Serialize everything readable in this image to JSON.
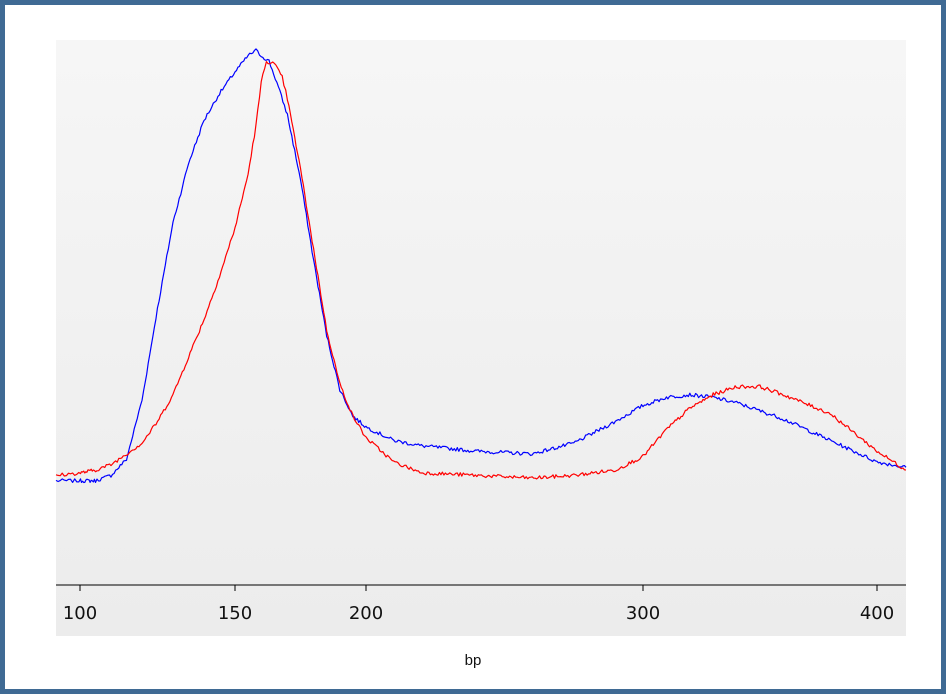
{
  "chart_data": {
    "type": "line",
    "title": "",
    "xlabel": "bp",
    "ylabel": "",
    "x_scale": "nonlinear (fragment sizes compressed toward larger bp)",
    "xlim": [
      96,
      416
    ],
    "ylim": [
      0,
      100
    ],
    "x_ticks": [
      100,
      150,
      200,
      300,
      400
    ],
    "grid": false,
    "legend": "none",
    "background": "#f2f2f2",
    "series": [
      {
        "color": "#0000ff",
        "x": [
          96,
          105,
          110,
          115,
          120,
          125,
          130,
          135,
          140,
          145,
          150,
          155,
          158,
          160,
          163,
          166,
          170,
          175,
          180,
          185,
          190,
          195,
          200,
          210,
          220,
          240,
          260,
          275,
          290,
          300,
          310,
          320,
          330,
          340,
          360,
          380,
          400,
          416
        ],
        "y": [
          19,
          19,
          20,
          23,
          34,
          51,
          67,
          78,
          86,
          91,
          95,
          98,
          99,
          98,
          97,
          93,
          87,
          75,
          60,
          46,
          36,
          31,
          29,
          26.5,
          25.5,
          24.5,
          24,
          26,
          30,
          33,
          34.5,
          35,
          34.5,
          33.5,
          30.5,
          26.5,
          22.5,
          21.5
        ]
      },
      {
        "color": "#ff0000",
        "x": [
          96,
          105,
          110,
          115,
          120,
          125,
          130,
          135,
          140,
          145,
          150,
          155,
          158,
          160,
          162,
          165,
          168,
          170,
          175,
          180,
          185,
          190,
          195,
          200,
          210,
          220,
          240,
          260,
          275,
          290,
          300,
          310,
          320,
          330,
          340,
          350,
          360,
          380,
          400,
          416
        ],
        "y": [
          20,
          21,
          22,
          24,
          26,
          30,
          35,
          42,
          49,
          57,
          66,
          76,
          85,
          93,
          97,
          96.5,
          94,
          90,
          77,
          62,
          47,
          37,
          31,
          27,
          22.5,
          20.5,
          20,
          19.5,
          20,
          21,
          23.5,
          28.5,
          32.5,
          35,
          36.5,
          36.5,
          35,
          31.5,
          24.5,
          21
        ]
      }
    ]
  }
}
